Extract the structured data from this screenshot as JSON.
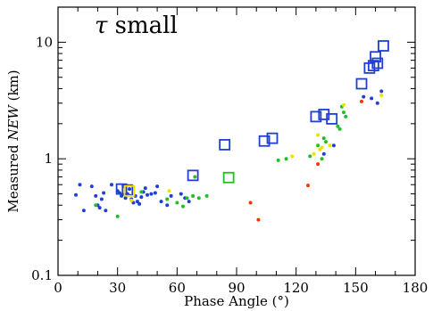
{
  "chart_data": {
    "type": "scatter",
    "title": "",
    "annotation": {
      "symbol": "τ",
      "text": " small"
    },
    "xlabel": "Phase Angle (°)",
    "ylabel": "Measured NEW (km)",
    "ylabel_parts": {
      "pre": "Measured ",
      "italic": "NEW",
      "post": " (km)"
    },
    "xlim": [
      0,
      180
    ],
    "ylim": [
      0.1,
      20
    ],
    "yscale": "log",
    "xticks": [
      0,
      30,
      60,
      90,
      120,
      150,
      180
    ],
    "xtick_labels": [
      "0",
      "30",
      "60",
      "90",
      "120",
      "150",
      "180"
    ],
    "yticks": [
      0.1,
      1,
      10
    ],
    "ytick_labels": [
      "0.1",
      "1",
      "10"
    ],
    "grid": false,
    "legend": "none",
    "series": [
      {
        "marker": "open-square",
        "color": "#1f3fd6",
        "points": [
          [
            32,
            0.55
          ],
          [
            35,
            0.54
          ],
          [
            68,
            0.72
          ],
          [
            84,
            1.32
          ],
          [
            104,
            1.42
          ],
          [
            108,
            1.5
          ],
          [
            130,
            2.3
          ],
          [
            134,
            2.4
          ],
          [
            138,
            2.2
          ],
          [
            153,
            4.4
          ],
          [
            157,
            6.0
          ],
          [
            159,
            6.3
          ],
          [
            160,
            7.5
          ],
          [
            161,
            6.6
          ],
          [
            164,
            9.3
          ]
        ]
      },
      {
        "marker": "open-square",
        "color": "#20c020",
        "points": [
          [
            86,
            0.69
          ]
        ]
      },
      {
        "marker": "open-square",
        "color": "#f0e000",
        "points": [
          [
            36,
            0.53
          ]
        ]
      },
      {
        "marker": "dot",
        "color": "#1f3fd6",
        "points": [
          [
            9,
            0.49
          ],
          [
            11,
            0.6
          ],
          [
            13,
            0.36
          ],
          [
            17,
            0.58
          ],
          [
            19,
            0.48
          ],
          [
            20,
            0.4
          ],
          [
            21,
            0.38
          ],
          [
            22,
            0.45
          ],
          [
            23,
            0.51
          ],
          [
            24,
            0.36
          ],
          [
            27,
            0.6
          ],
          [
            30,
            0.53
          ],
          [
            31,
            0.51
          ],
          [
            32,
            0.48
          ],
          [
            33,
            0.58
          ],
          [
            34,
            0.46
          ],
          [
            35,
            0.5
          ],
          [
            36,
            0.55
          ],
          [
            37,
            0.45
          ],
          [
            38,
            0.42
          ],
          [
            39,
            0.48
          ],
          [
            40,
            0.43
          ],
          [
            41,
            0.41
          ],
          [
            42,
            0.47
          ],
          [
            43,
            0.52
          ],
          [
            44,
            0.56
          ],
          [
            45,
            0.49
          ],
          [
            47,
            0.5
          ],
          [
            49,
            0.51
          ],
          [
            50,
            0.58
          ],
          [
            52,
            0.43
          ],
          [
            55,
            0.4
          ],
          [
            57,
            0.48
          ],
          [
            62,
            0.5
          ],
          [
            64,
            0.46
          ],
          [
            66,
            0.43
          ],
          [
            134,
            1.1
          ],
          [
            139,
            1.3
          ],
          [
            154,
            3.4
          ],
          [
            158,
            3.3
          ],
          [
            161,
            3.0
          ],
          [
            163,
            3.8
          ]
        ]
      },
      {
        "marker": "dot",
        "color": "#20c020",
        "points": [
          [
            19,
            0.4
          ],
          [
            30,
            0.32
          ],
          [
            42,
            0.52
          ],
          [
            55,
            0.45
          ],
          [
            60,
            0.42
          ],
          [
            63,
            0.39
          ],
          [
            65,
            0.46
          ],
          [
            68,
            0.48
          ],
          [
            69,
            0.7
          ],
          [
            71,
            0.46
          ],
          [
            75,
            0.48
          ],
          [
            111,
            0.97
          ],
          [
            115,
            1.0
          ],
          [
            127,
            1.05
          ],
          [
            131,
            1.3
          ],
          [
            133,
            1.0
          ],
          [
            134,
            1.5
          ],
          [
            135,
            1.4
          ],
          [
            141,
            1.9
          ],
          [
            142,
            1.8
          ],
          [
            143,
            2.8
          ],
          [
            144,
            2.5
          ],
          [
            145,
            2.3
          ]
        ]
      },
      {
        "marker": "dot",
        "color": "#f0e000",
        "points": [
          [
            37,
            0.44
          ],
          [
            56,
            0.53
          ],
          [
            118,
            1.05
          ],
          [
            129,
            1.1
          ],
          [
            131,
            1.6
          ],
          [
            132,
            1.2
          ],
          [
            133,
            1.25
          ],
          [
            137,
            1.3
          ],
          [
            144,
            2.9
          ],
          [
            163,
            3.5
          ]
        ]
      },
      {
        "marker": "dot",
        "color": "#ff3300",
        "points": [
          [
            97,
            0.42
          ],
          [
            101,
            0.3
          ],
          [
            126,
            0.59
          ],
          [
            131,
            0.9
          ],
          [
            153,
            3.1
          ]
        ]
      }
    ]
  }
}
